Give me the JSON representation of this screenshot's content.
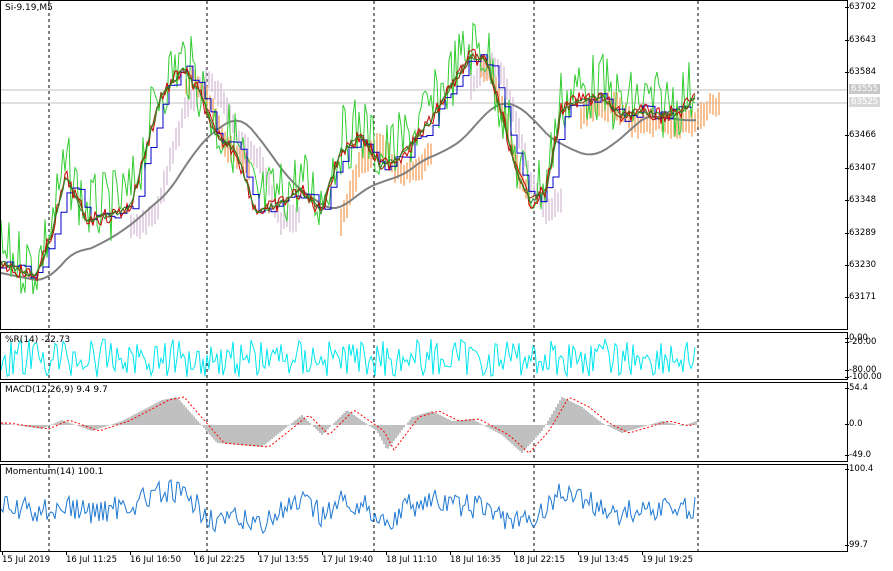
{
  "main": {
    "title": "Si-9.19,M5",
    "price_labels": [
      "63702",
      "63643",
      "63584",
      "63466",
      "63407",
      "63348",
      "63289",
      "63230",
      "63171"
    ],
    "current_price_upper": "63555",
    "current_price_lower": "63525"
  },
  "wpr": {
    "title": "%R(14) -22.73",
    "levels": [
      "0.00",
      "-20.00",
      "-80.00",
      "-100.00"
    ]
  },
  "macd": {
    "title": "MACD(12,26,9) 9.4 9.7",
    "levels": [
      "54.4",
      "0.0",
      "-49.0"
    ]
  },
  "momentum": {
    "title": "Momentum(14) 100.1",
    "levels": [
      "100.4",
      "99.7"
    ]
  },
  "time_labels": [
    "15 Jul 2019",
    "16 Jul 11:25",
    "16 Jul 16:50",
    "16 Jul 22:25",
    "17 Jul 13:55",
    "17 Jul 19:40",
    "18 Jul 11:10",
    "18 Jul 16:35",
    "18 Jul 22:15",
    "19 Jul 13:45",
    "19 Jul 19:25"
  ],
  "colors": {
    "wpr_line": "#00e5ee",
    "macd_hist": "#c0c0c0",
    "macd_signal": "#ff0000",
    "momentum_line": "#1e78d2",
    "green_line": "#32cd32",
    "blue_line": "#0000c8",
    "red_line": "#c80000",
    "brown_line": "#8b4513",
    "gray_ma": "#808080",
    "cloud_orange": "#f4a460",
    "cloud_violet": "#d8bfd8"
  }
}
